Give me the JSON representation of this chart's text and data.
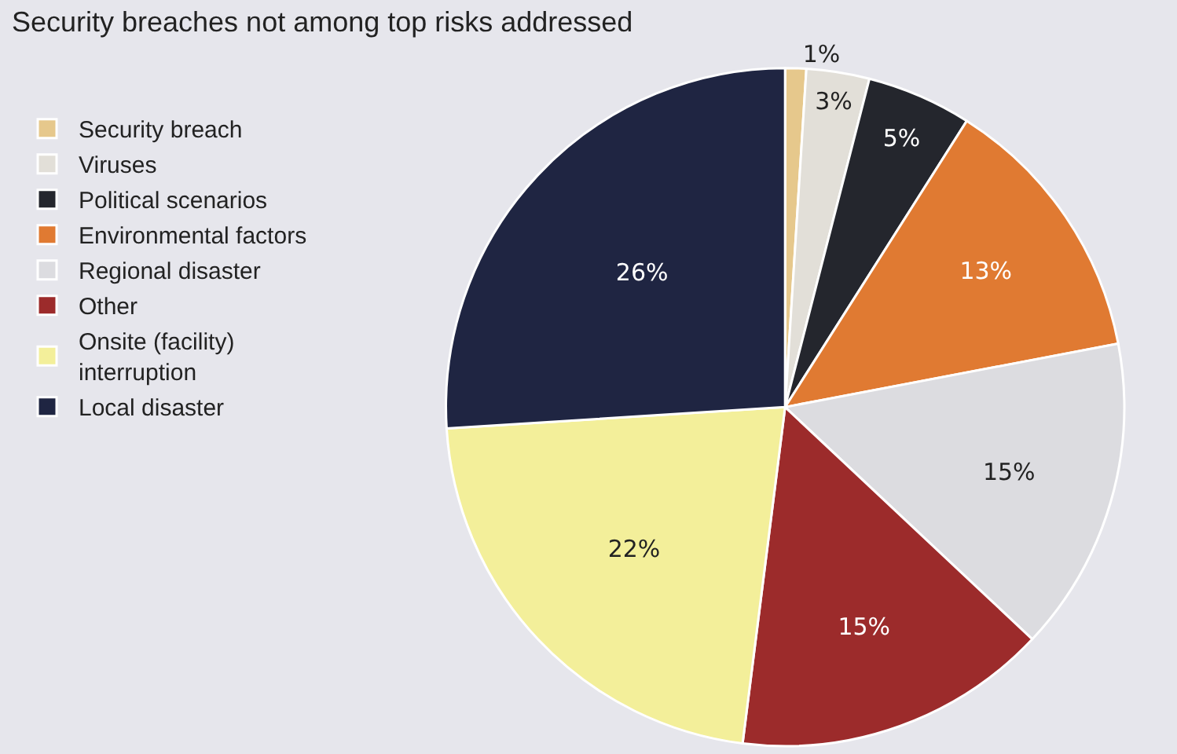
{
  "chart_data": {
    "type": "pie",
    "title": "Security breaches not among top risks addressed",
    "categories": [
      "Security breach",
      "Viruses",
      "Political scenarios",
      "Environmental factors",
      "Regional disaster",
      "Other",
      "Onsite (facility)\ninterruption",
      "Local disaster"
    ],
    "values": [
      1,
      3,
      5,
      13,
      15,
      15,
      22,
      26
    ],
    "value_labels": [
      "1%",
      "3%",
      "5%",
      "13%",
      "15%",
      "15%",
      "22%",
      "26%"
    ],
    "colors": [
      "#e6c88c",
      "#e2dfd8",
      "#24262d",
      "#e07a32",
      "#dcdce0",
      "#9c2b2b",
      "#f3ef9a",
      "#1f2542"
    ],
    "legend": "left"
  }
}
